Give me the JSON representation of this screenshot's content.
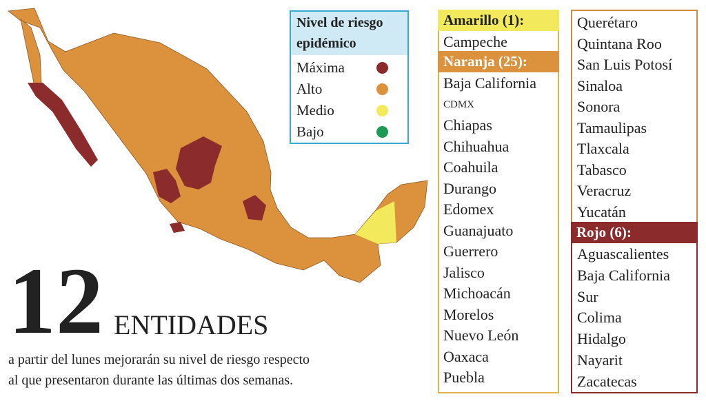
{
  "legend": {
    "title": "Nivel de riesgo epidémico",
    "items": [
      {
        "label": "Máxima",
        "color": "#8b2b2b"
      },
      {
        "label": "Alto",
        "color": "#dc913c"
      },
      {
        "label": "Medio",
        "color": "#f2ea5c"
      },
      {
        "label": "Bajo",
        "color": "#1f9a55"
      }
    ]
  },
  "groups": [
    {
      "title": "Amarillo (1):",
      "items": [
        "Campeche"
      ]
    },
    {
      "title": "Naranja (25):",
      "items": [
        "Baja California",
        "CDMX",
        "Chiapas",
        "Chihuahua",
        "Coahuila",
        "Durango",
        "Edomex",
        "Guanajuato",
        "Guerrero",
        "Jalisco",
        "Michoacán",
        "Morelos",
        "Nuevo León",
        "Oaxaca",
        "Puebla",
        "Querétaro",
        "Quintana Roo",
        "San Luis Potosí",
        "Sinaloa",
        "Sonora",
        "Tamaulipas",
        "Tlaxcala",
        "Tabasco",
        "Veracruz",
        "Yucatán"
      ]
    },
    {
      "title": "Rojo (6):",
      "items": [
        "Aguascalientes",
        "Baja California Sur",
        "Colima",
        "Hidalgo",
        "Nayarit",
        "Zacatecas"
      ]
    }
  ],
  "headline": {
    "number": "12",
    "word": "ENTIDADES"
  },
  "description": [
    "a partir del lunes mejorarán su nivel de riesgo respecto",
    "al que presentaron durante las últimas dos semanas."
  ]
}
